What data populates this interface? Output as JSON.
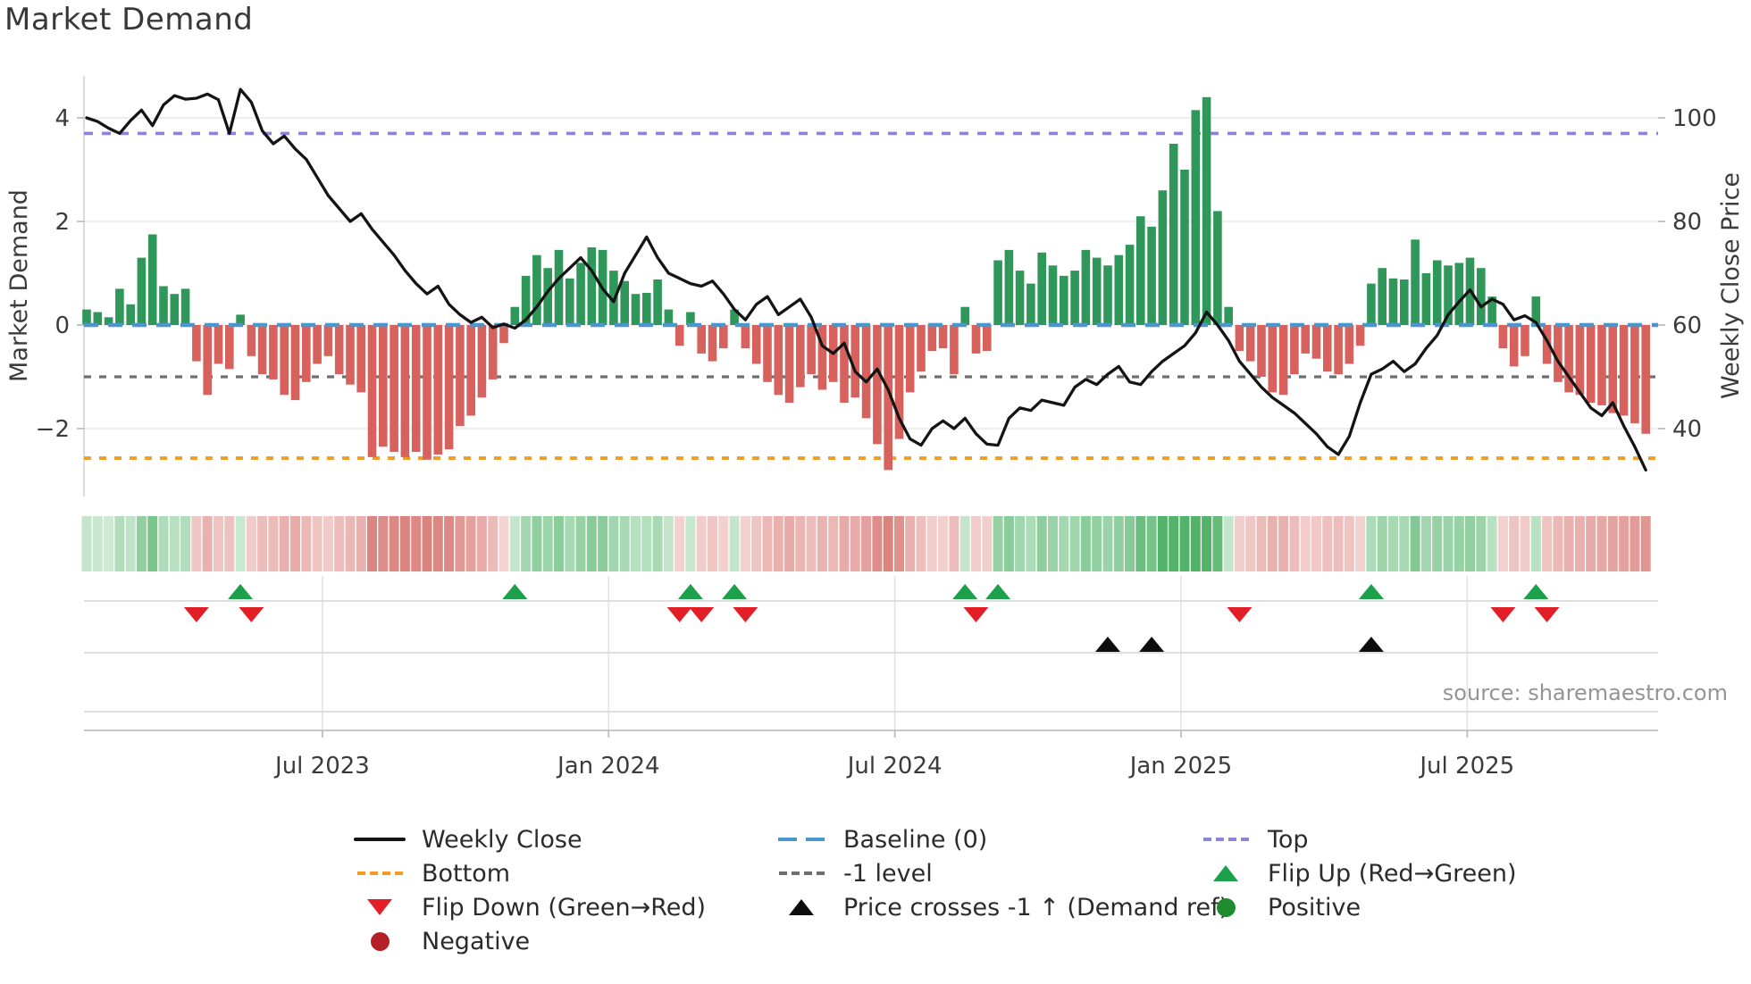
{
  "title": "Market Demand",
  "source": "source: sharemaestro.com",
  "axes": {
    "left_label": "Market Demand",
    "right_label": "Weekly Close Price",
    "left_ticks": [
      {
        "v": 4,
        "label": "4"
      },
      {
        "v": 2,
        "label": "2"
      },
      {
        "v": 0,
        "label": "0"
      },
      {
        "v": -2,
        "label": "−2"
      }
    ],
    "right_ticks": [
      {
        "v": 100,
        "label": "100"
      },
      {
        "v": 80,
        "label": "80"
      },
      {
        "v": 60,
        "label": "60"
      },
      {
        "v": 40,
        "label": "40"
      }
    ],
    "x_ticks": [
      {
        "month": 5,
        "label": "Jul 2023"
      },
      {
        "month": 11,
        "label": "Jan 2024"
      },
      {
        "month": 17,
        "label": "Jul 2024"
      },
      {
        "month": 23,
        "label": "Jan 2025"
      },
      {
        "month": 29,
        "label": "Jul 2025"
      }
    ]
  },
  "legend": {
    "columns": [
      {
        "items": [
          {
            "label": "Weekly Close",
            "swatch": "line",
            "color": "#141414"
          },
          {
            "label": "Bottom",
            "swatch": "dash",
            "color": "#f29b26"
          },
          {
            "label": "Flip Down (Green→Red)",
            "swatch": "tri-down",
            "color": "#e21f26"
          },
          {
            "label": "Negative",
            "swatch": "circle",
            "color": "#b42025"
          }
        ]
      },
      {
        "items": [
          {
            "label": "Baseline (0)",
            "swatch": "dash-long",
            "color": "#4a97cb"
          },
          {
            "label": "-1 level",
            "swatch": "dash",
            "color": "#6e6e6e"
          },
          {
            "label": "Price crosses -1 ↑ (Demand ref)",
            "swatch": "tri-up",
            "color": "#0d0d0d"
          }
        ]
      },
      {
        "items": [
          {
            "label": "Top",
            "swatch": "dash",
            "color": "#8a84da"
          },
          {
            "label": "Flip Up (Red→Green)",
            "swatch": "tri-up",
            "color": "#1ca04a"
          },
          {
            "label": "Positive",
            "swatch": "circle",
            "color": "#1f8b2e"
          }
        ]
      }
    ]
  },
  "chart_data": {
    "type": "bar+line",
    "freq": "weekly",
    "x_range": [
      "Feb 2023",
      "Oct 2025"
    ],
    "title": "Market Demand",
    "ylabel_left": "Market Demand",
    "ylabel_right": "Weekly Close Price",
    "demand_ylim": [
      -3.3,
      4.8
    ],
    "price_ylim": [
      27,
      108
    ],
    "baseline": 0,
    "top_level": 3.7,
    "bottom_level": -2.57,
    "minus_one_level": -1,
    "demand": [
      0.3,
      0.25,
      0.15,
      0.7,
      0.4,
      1.3,
      1.75,
      0.75,
      0.6,
      0.7,
      -0.7,
      -1.35,
      -0.75,
      -0.85,
      0.2,
      -0.6,
      -0.95,
      -1.05,
      -1.35,
      -1.45,
      -1.1,
      -0.75,
      -0.6,
      -0.95,
      -1.15,
      -1.3,
      -2.55,
      -2.35,
      -2.45,
      -2.55,
      -2.45,
      -2.6,
      -2.5,
      -2.4,
      -1.95,
      -1.75,
      -1.4,
      -1.05,
      -0.35,
      0.35,
      0.95,
      1.35,
      1.1,
      1.45,
      0.9,
      1.2,
      1.5,
      1.45,
      1.05,
      0.85,
      0.6,
      0.62,
      0.88,
      0.3,
      -0.4,
      0.25,
      -0.55,
      -0.7,
      -0.45,
      0.3,
      -0.45,
      -0.75,
      -1.1,
      -1.35,
      -1.5,
      -1.2,
      -0.95,
      -1.25,
      -1.1,
      -1.5,
      -1.4,
      -1.8,
      -2.3,
      -2.8,
      -2.2,
      -1.3,
      -0.9,
      -0.5,
      -0.45,
      -0.95,
      0.35,
      -0.55,
      -0.5,
      1.25,
      1.45,
      1.05,
      0.8,
      1.4,
      1.15,
      0.95,
      1.05,
      1.45,
      1.3,
      1.15,
      1.35,
      1.55,
      2.1,
      1.9,
      2.6,
      3.5,
      3.0,
      4.15,
      4.4,
      2.2,
      0.35,
      -0.5,
      -0.7,
      -1.0,
      -1.3,
      -1.35,
      -0.95,
      -0.55,
      -0.65,
      -0.9,
      -0.95,
      -0.75,
      -0.4,
      0.8,
      1.1,
      0.9,
      0.88,
      1.65,
      1.0,
      1.25,
      1.15,
      1.2,
      1.3,
      1.1,
      0.55,
      -0.45,
      -0.8,
      -0.6,
      0.55,
      -0.75,
      -1.1,
      -1.3,
      -1.35,
      -1.5,
      -1.55,
      -1.7,
      -1.75,
      -1.9,
      -2.1
    ],
    "price": [
      100,
      99.3,
      98,
      97,
      99.5,
      101.5,
      98.5,
      102.5,
      104.3,
      103.6,
      103.8,
      104.6,
      103.5,
      97,
      105.5,
      103,
      97.5,
      95,
      96.5,
      94,
      92,
      88.5,
      85,
      82.5,
      80,
      81.5,
      78.5,
      76,
      73.5,
      70.5,
      68,
      66,
      67.5,
      64,
      62,
      60.5,
      61.5,
      59.5,
      60.2,
      59.4,
      61,
      63.5,
      66.5,
      69,
      71,
      73,
      70.5,
      67,
      64.5,
      70,
      73.5,
      77,
      73,
      70,
      69,
      68,
      67.5,
      68.5,
      66,
      63,
      61,
      64,
      65.5,
      62,
      63.5,
      65,
      61.5,
      56,
      54.5,
      56.5,
      51,
      49,
      51.5,
      47.5,
      42,
      38,
      36.8,
      40,
      41.5,
      40,
      42,
      39,
      37,
      36.8,
      42,
      44,
      43.5,
      45.5,
      45,
      44.5,
      48,
      49.5,
      48.5,
      50.5,
      52,
      49,
      48.5,
      51,
      53,
      54.5,
      56,
      58.5,
      62.5,
      60,
      57,
      53,
      50.5,
      48,
      46,
      44.5,
      43,
      41,
      39,
      36.5,
      35,
      38.5,
      45,
      50.5,
      51.5,
      53,
      51,
      52.5,
      55.5,
      58,
      62,
      64.5,
      66.8,
      63.5,
      65,
      64,
      61,
      61.8,
      60.5,
      57,
      53,
      50,
      47,
      44,
      42.5,
      45,
      40.5,
      36.5,
      32
    ],
    "flip_up_weeks": [
      14,
      39,
      55,
      59,
      80,
      83,
      117,
      132
    ],
    "flip_down_weeks": [
      10,
      15,
      54,
      56,
      60,
      81,
      105,
      129,
      133
    ],
    "price_cross_weeks": [
      93,
      97,
      117
    ],
    "colors": {
      "positive_bar": "#2e9759",
      "negative_bar": "#d7625d",
      "heat_positive": "#52b469",
      "heat_negative": "#dc837e",
      "price_line": "#141414",
      "baseline": "#4a97cb",
      "top": "#8a84da",
      "bottom": "#f29b26",
      "minus_one": "#6e6e6e",
      "flip_up": "#1ca04a",
      "flip_down": "#e21f26",
      "price_cross": "#0d0d0d",
      "grid": "#ebecf1",
      "panel_line": "#d9d9dc",
      "text": "#3b3b3b"
    }
  }
}
